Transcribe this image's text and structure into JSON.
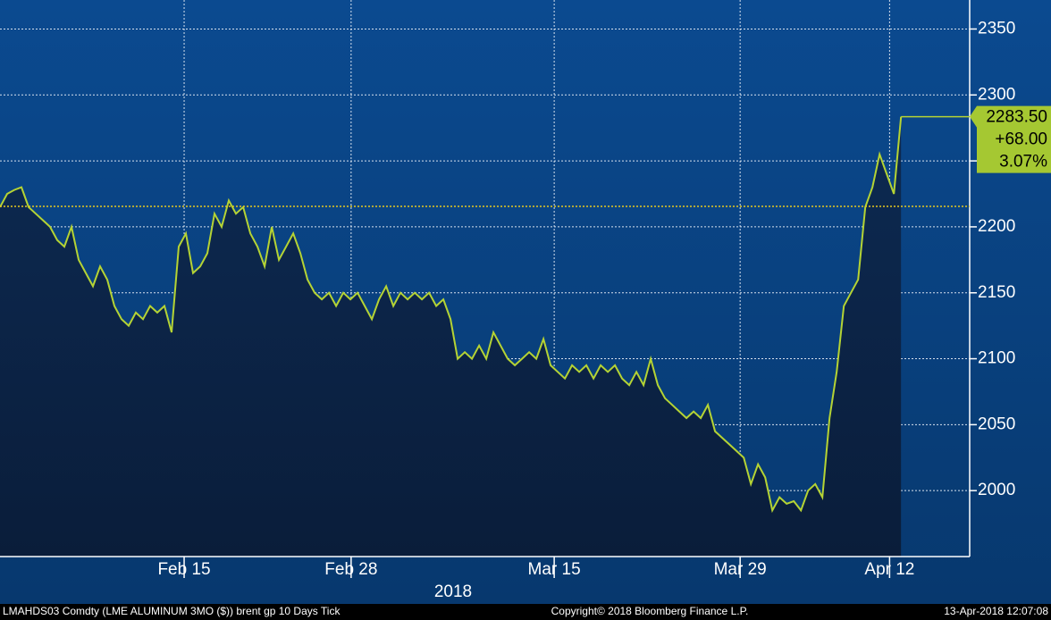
{
  "chart_data": {
    "type": "area",
    "series": [
      {
        "name": "LMAHDS03 Comdty",
        "color": "#b5d334",
        "values": [
          2215,
          2225,
          2228,
          2230,
          2215,
          2210,
          2205,
          2200,
          2190,
          2185,
          2200,
          2175,
          2165,
          2155,
          2170,
          2160,
          2140,
          2130,
          2125,
          2135,
          2130,
          2140,
          2135,
          2140,
          2120,
          2185,
          2195,
          2165,
          2170,
          2180,
          2210,
          2200,
          2220,
          2210,
          2215,
          2195,
          2185,
          2170,
          2200,
          2175,
          2185,
          2195,
          2180,
          2160,
          2150,
          2145,
          2150,
          2140,
          2150,
          2145,
          2150,
          2140,
          2130,
          2145,
          2155,
          2140,
          2150,
          2145,
          2150,
          2145,
          2150,
          2140,
          2145,
          2130,
          2100,
          2105,
          2100,
          2110,
          2100,
          2120,
          2110,
          2100,
          2095,
          2100,
          2105,
          2100,
          2115,
          2095,
          2090,
          2085,
          2095,
          2090,
          2095,
          2085,
          2095,
          2090,
          2095,
          2085,
          2080,
          2090,
          2080,
          2100,
          2080,
          2070,
          2065,
          2060,
          2055,
          2060,
          2055,
          2065,
          2045,
          2040,
          2035,
          2030,
          2025,
          2005,
          2020,
          2010,
          1985,
          1995,
          1990,
          1992,
          1985,
          2000,
          2005,
          1995,
          2055,
          2090,
          2140,
          2150,
          2160,
          2215,
          2230,
          2255,
          2240,
          2225,
          2283.5
        ]
      }
    ],
    "reference_line": 2215.5,
    "last_value_label": "2283.50",
    "change_label": "+68.00",
    "change_pct_label": "3.07%",
    "xlim": [
      0,
      135.6
    ],
    "xticks": [
      {
        "value": 25.75,
        "label": "Feb 15"
      },
      {
        "value": 49.1,
        "label": "Feb 28"
      },
      {
        "value": 77.5,
        "label": "Mar 15"
      },
      {
        "value": 103.5,
        "label": "Mar 29"
      },
      {
        "value": 124.4,
        "label": "Apr 12"
      }
    ],
    "year_label": "2018",
    "ylim": [
      1950,
      2372
    ],
    "yticks": [
      2000,
      2050,
      2100,
      2150,
      2200,
      2250,
      2300,
      2350
    ],
    "grid": true,
    "footer_left": "LMAHDS03 Comdty (LME ALUMINUM  3MO ($)) brent gp 10 Days  Tick",
    "footer_center": "Copyright© 2018 Bloomberg Finance L.P.",
    "footer_right": "13-Apr-2018 12:07:08"
  }
}
